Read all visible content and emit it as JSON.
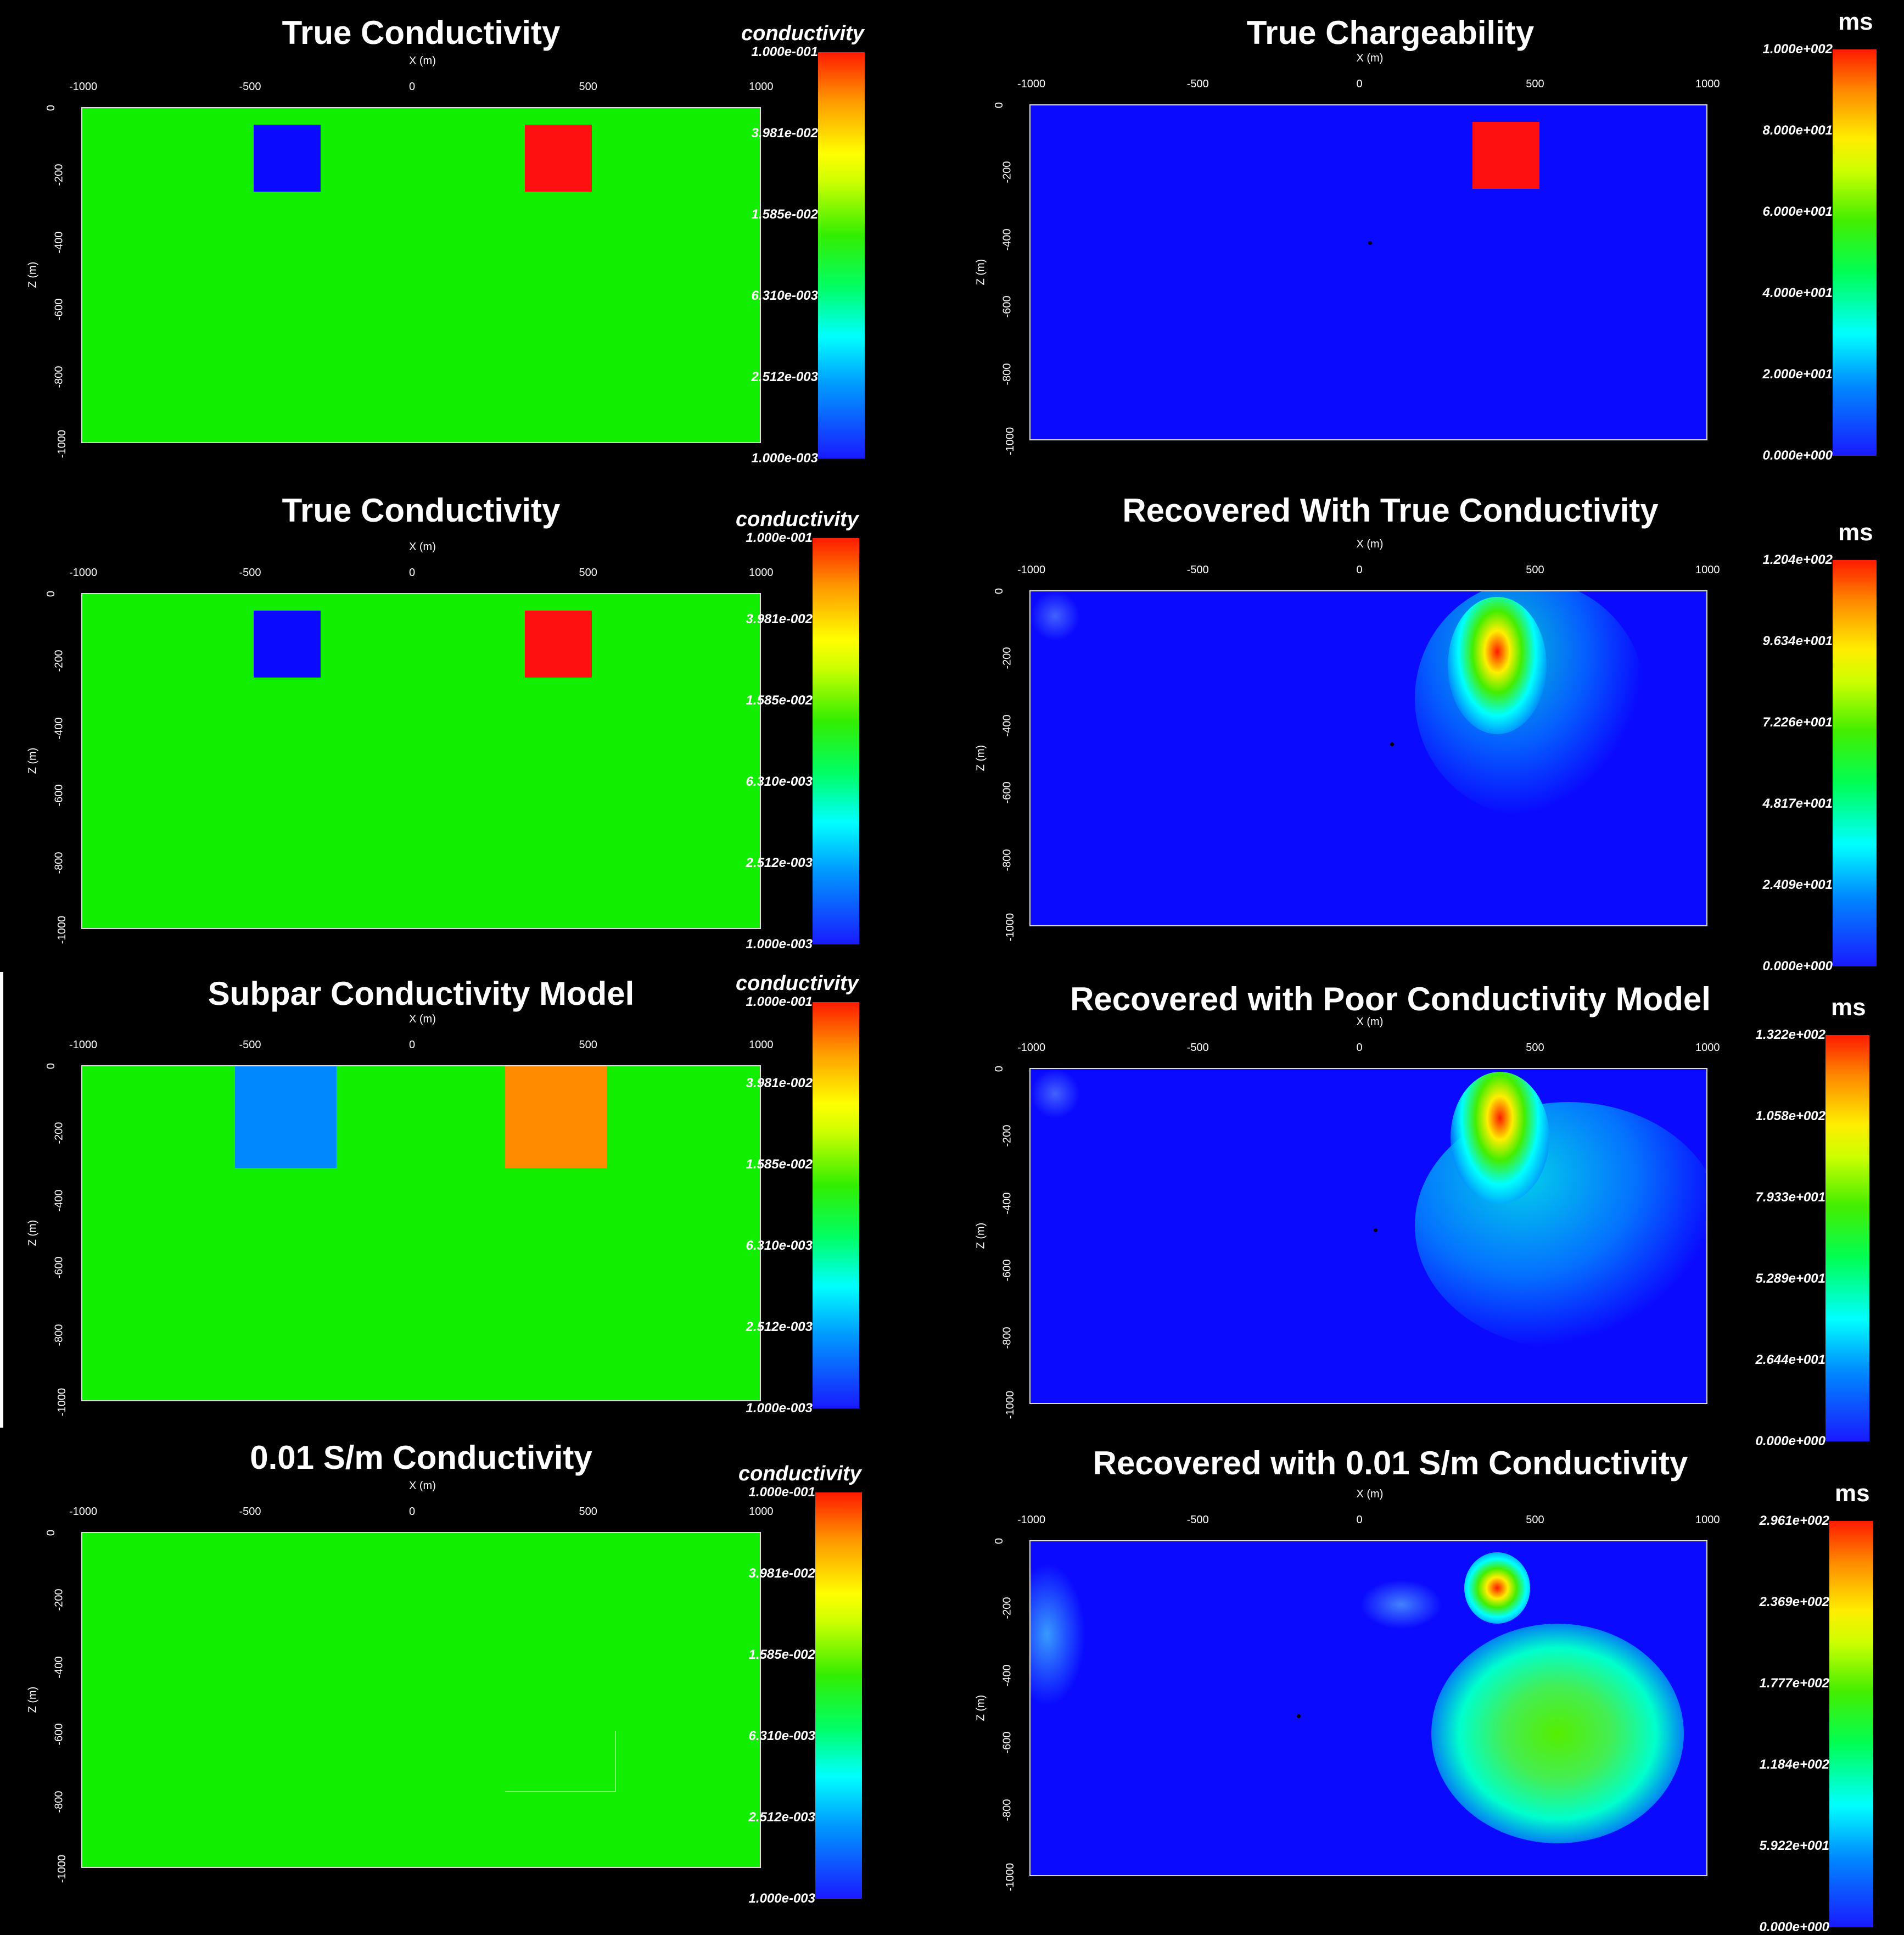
{
  "axis": {
    "x_label": "X (m)",
    "z_label": "Z (m)",
    "x_ticks": [
      "-1000",
      "-500",
      "0",
      "500",
      "1000"
    ],
    "z_ticks": [
      "0",
      "-200",
      "-400",
      "-600",
      "-800",
      "-1000"
    ]
  },
  "colorbar": {
    "cond_title": "conductivity",
    "cond_ticks": [
      "1.000e-001",
      "3.981e-002",
      "1.585e-002",
      "6.310e-003",
      "2.512e-003",
      "1.000e-003"
    ],
    "ms_unit": "ms",
    "ms_ticks": [
      [
        "1.000e+002",
        "8.000e+001",
        "6.000e+001",
        "4.000e+001",
        "2.000e+001",
        "0.000e+000"
      ],
      [
        "1.204e+002",
        "9.634e+001",
        "7.226e+001",
        "4.817e+001",
        "2.409e+001",
        "0.000e+000"
      ],
      [
        "1.322e+002",
        "1.058e+002",
        "7.933e+001",
        "5.289e+001",
        "2.644e+001",
        "0.000e+000"
      ],
      [
        "2.961e+002",
        "2.369e+002",
        "1.777e+002",
        "1.184e+002",
        "5.922e+001",
        "0.000e+000"
      ]
    ]
  },
  "panels": {
    "left": [
      {
        "title": "True Conductivity"
      },
      {
        "title": "True Conductivity"
      },
      {
        "title": "Subpar Conductivity Model"
      },
      {
        "title": "0.01 S/m Conductivity"
      }
    ],
    "right": [
      {
        "title": "True Chargeability"
      },
      {
        "title": "Recovered With True Conductivity"
      },
      {
        "title": "Recovered with Poor Conductivity Model"
      },
      {
        "title": "Recovered with 0.01 S/m Conductivity"
      }
    ]
  },
  "colors": {
    "background": "#000000",
    "conductive_block": "#ff1010",
    "resistive_block": "#0a0aff",
    "subpar_resistive": "#0088ff",
    "subpar_conductive": "#ff8c00",
    "host_green": "#11ee00",
    "host_blue": "#0a0aff"
  }
}
